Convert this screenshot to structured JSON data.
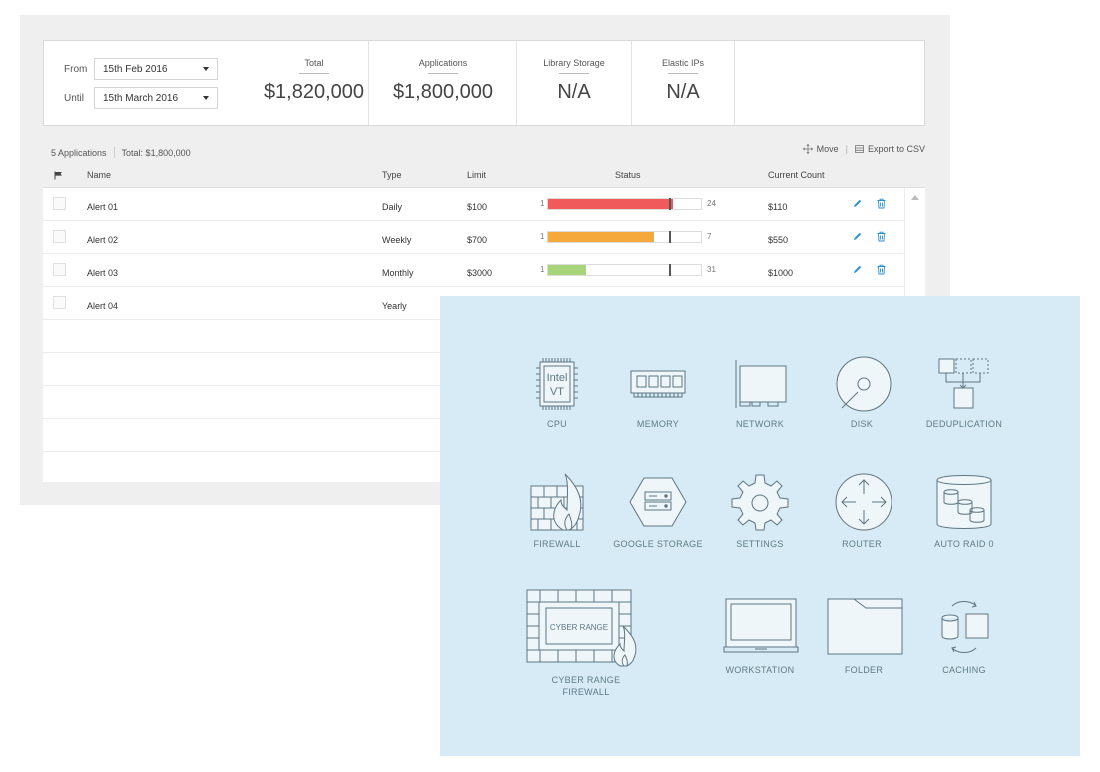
{
  "filters": {
    "from_label": "From",
    "from_value": "15th Feb 2016",
    "until_label": "Until",
    "until_value": "15th March 2016"
  },
  "metrics": [
    {
      "label": "Total",
      "value": "$1,820,000"
    },
    {
      "label": "Applications",
      "value": "$1,800,000"
    },
    {
      "label": "Library Storage",
      "value": "N/A"
    },
    {
      "label": "Elastic IPs",
      "value": "N/A"
    }
  ],
  "table_meta": {
    "count": "5 Applications",
    "total": "Total: $1,800,000",
    "move_label": "Move",
    "export_label": "Export to CSV"
  },
  "columns": {
    "name": "Name",
    "type": "Type",
    "limit": "Limit",
    "status": "Status",
    "current_count": "Current Count"
  },
  "rows": [
    {
      "name": "Alert 01",
      "type": "Daily",
      "limit": "$100",
      "status_min": "1",
      "status_max": "24",
      "status_fill": 0.82,
      "status_color": "#f05a5a",
      "current": "$110"
    },
    {
      "name": "Alert 02",
      "type": "Weekly",
      "limit": "$700",
      "status_min": "1",
      "status_max": "7",
      "status_fill": 0.69,
      "status_color": "#f5a93a",
      "current": "$550"
    },
    {
      "name": "Alert 03",
      "type": "Monthly",
      "limit": "$3000",
      "status_min": "1",
      "status_max": "31",
      "status_fill": 0.25,
      "status_color": "#a8d47a",
      "current": "$1000"
    },
    {
      "name": "Alert 04",
      "type": "Yearly",
      "limit": "",
      "status_min": "",
      "status_max": "",
      "status_fill": 0,
      "status_color": "#ffffff",
      "current": ""
    }
  ],
  "icons": {
    "cpu": "CPU",
    "cpu_chip_line1": "Intel",
    "cpu_chip_line2": "VT",
    "memory": "MEMORY",
    "network": "NETWORK",
    "disk": "DISK",
    "deduplication": "DEDUPLICATION",
    "firewall": "FIREWALL",
    "google_storage": "GOOGLE STORAGE",
    "settings": "SETTINGS",
    "router": "ROUTER",
    "auto_raid": "AUTO RAID 0",
    "cyber_range_inner": "CYBER RANGE",
    "cyber_range_line1": "CYBER RANGE",
    "cyber_range_line2": "FIREWALL",
    "workstation": "WORKSTATION",
    "folder": "FOLDER",
    "caching": "CACHING"
  },
  "colors": {
    "accent": "#2b8fd6",
    "panel_bg": "#d6ebf5",
    "icon_stroke": "#5f7581"
  }
}
